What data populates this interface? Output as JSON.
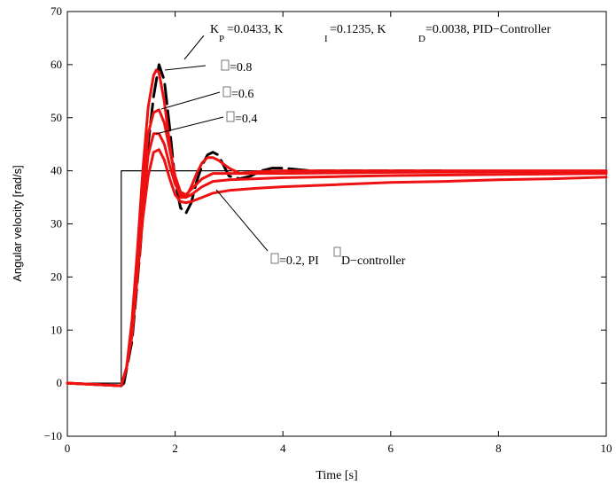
{
  "chart_data": {
    "type": "line",
    "title": "",
    "xlabel": "Time [s]",
    "ylabel": "Angular velocity [rad/s]",
    "xlim": [
      0,
      10
    ],
    "ylim": [
      -10,
      70
    ],
    "xticks": [
      0,
      2,
      4,
      6,
      8,
      10
    ],
    "yticks": [
      -10,
      0,
      10,
      20,
      30,
      40,
      50,
      60,
      70
    ],
    "grid": false,
    "legend": "none",
    "reference": {
      "color": "#000000",
      "x": [
        0,
        1,
        1,
        10
      ],
      "y": [
        0,
        0,
        40,
        40
      ]
    },
    "pid_response": {
      "color": "#000000",
      "x": [
        0,
        1.0,
        1.05,
        1.2,
        1.35,
        1.5,
        1.6,
        1.7,
        1.8,
        1.9,
        2.0,
        2.1,
        2.2,
        2.3,
        2.4,
        2.5,
        2.6,
        2.7,
        2.8,
        2.9,
        3.0,
        3.2,
        3.4,
        3.6,
        3.8,
        4.0,
        4.5,
        5.0,
        6.0,
        7.0
      ],
      "y": [
        0,
        -0.5,
        0,
        8,
        25,
        45,
        54,
        60,
        57,
        48,
        38,
        33,
        32,
        34,
        38,
        41,
        43,
        43.5,
        43,
        41,
        39,
        38.5,
        39,
        40,
        40.5,
        40.5,
        40,
        40,
        40,
        40
      ]
    },
    "fractional_series": [
      {
        "color": "#ee1111",
        "x": [
          0,
          1.0,
          1.1,
          1.2,
          1.3,
          1.4,
          1.5,
          1.6,
          1.65,
          1.7,
          1.8,
          1.9,
          2.0,
          2.1,
          2.2,
          2.3,
          2.4,
          2.5,
          2.6,
          2.7,
          2.8,
          3.0,
          3.2,
          3.5,
          4.0,
          5.0,
          6.0,
          8.0,
          10.0
        ],
        "y": [
          0,
          -0.5,
          3,
          12,
          25,
          40,
          52,
          58,
          59,
          58.5,
          53,
          45,
          38,
          35,
          35,
          37,
          39.5,
          41.5,
          42.5,
          42.5,
          42,
          40.5,
          39.5,
          39.8,
          40,
          40,
          40,
          40,
          40
        ]
      },
      {
        "color": "#ee1111",
        "x": [
          0,
          1.0,
          1.1,
          1.2,
          1.3,
          1.4,
          1.5,
          1.6,
          1.7,
          1.8,
          1.9,
          2.0,
          2.1,
          2.2,
          2.3,
          2.5,
          2.7,
          3.0,
          3.5,
          4.0,
          5.0,
          6.0,
          8.0,
          10.0
        ],
        "y": [
          0,
          -0.5,
          3,
          11,
          24,
          37,
          47,
          51,
          51.5,
          49,
          44,
          39,
          36,
          35.5,
          36.5,
          38.5,
          39.5,
          39.5,
          39.5,
          39.5,
          39.6,
          39.7,
          39.8,
          39.8
        ]
      },
      {
        "color": "#ee1111",
        "x": [
          0,
          1.0,
          1.1,
          1.2,
          1.3,
          1.4,
          1.5,
          1.6,
          1.7,
          1.8,
          1.9,
          2.0,
          2.1,
          2.2,
          2.3,
          2.5,
          2.7,
          3.0,
          3.5,
          4.0,
          5.0,
          6.0,
          8.0,
          10.0
        ],
        "y": [
          0,
          -0.5,
          3,
          10,
          22,
          34,
          43,
          47,
          47,
          45,
          41,
          37.5,
          35.5,
          35,
          35.5,
          37,
          38,
          38.3,
          38.5,
          38.7,
          38.9,
          39.1,
          39.3,
          39.5
        ]
      },
      {
        "color": "#ee1111",
        "x": [
          0,
          1.0,
          1.1,
          1.2,
          1.3,
          1.4,
          1.5,
          1.6,
          1.7,
          1.8,
          1.9,
          2.0,
          2.1,
          2.2,
          2.3,
          2.5,
          2.7,
          3.0,
          3.5,
          4.0,
          5.0,
          6.0,
          7.0,
          8.0,
          9.0,
          10.0
        ],
        "y": [
          0,
          -0.5,
          3,
          9,
          20,
          31,
          39,
          43.5,
          44,
          42,
          38.5,
          35.5,
          34.2,
          34,
          34.2,
          35,
          35.8,
          36.3,
          36.7,
          37,
          37.4,
          37.8,
          38,
          38.3,
          38.5,
          38.8
        ]
      }
    ],
    "annotations": {
      "pid": {
        "kp": "=0.0433, K",
        "ki": "=0.1235, K",
        "kd": "=0.0038, PID−Controller"
      },
      "a08": "=0.8",
      "a06": "=0.6",
      "a04": "=0.4",
      "a02": {
        "pre": "=0.2, PI",
        "post": "D−controller"
      }
    }
  }
}
